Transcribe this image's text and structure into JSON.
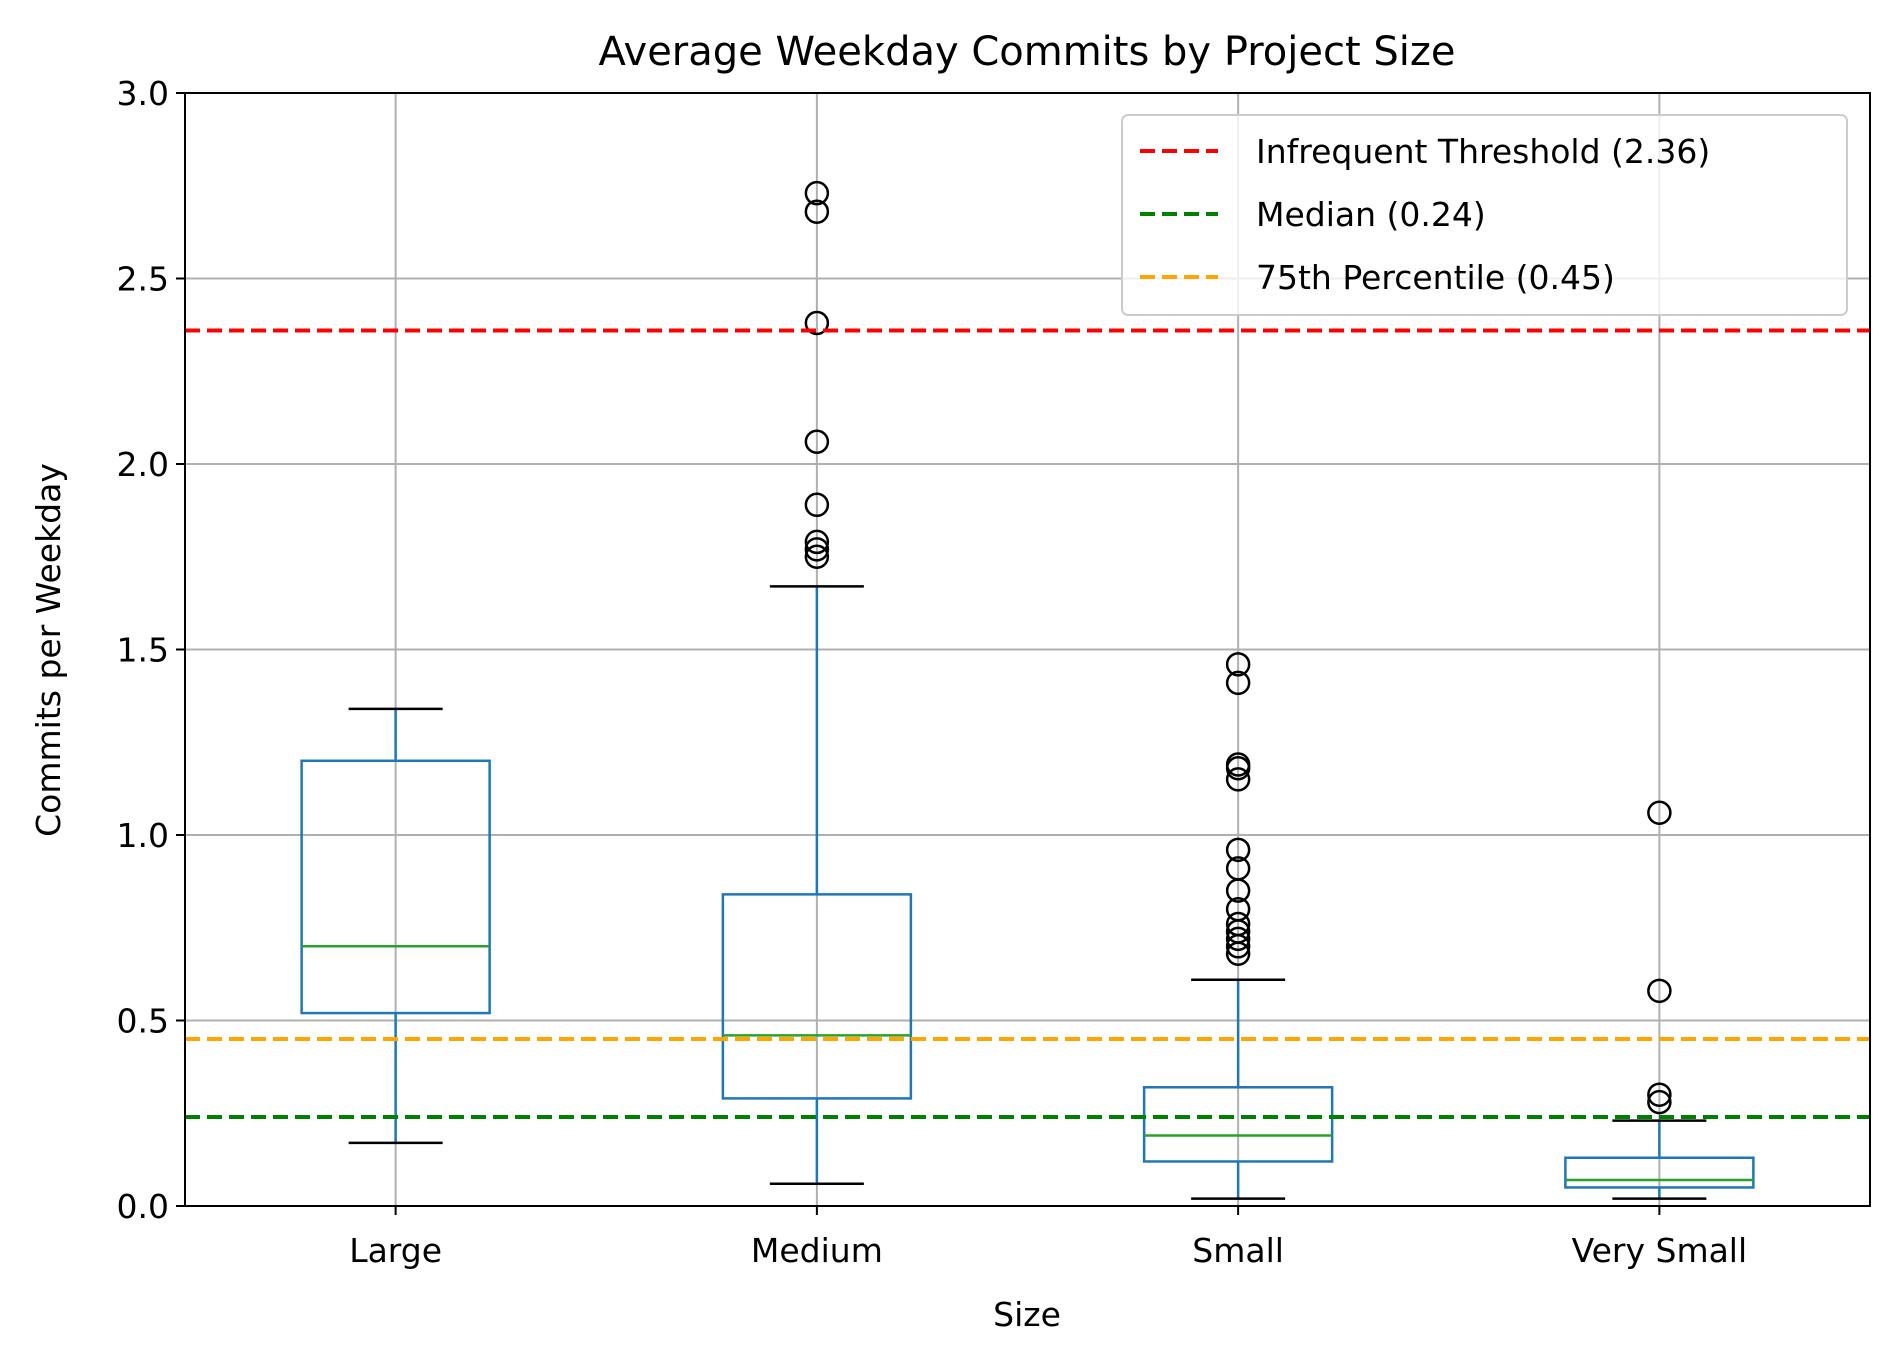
{
  "chart_data": {
    "type": "box",
    "title": "Average Weekday Commits by Project Size",
    "xlabel": "Size",
    "ylabel": "Commits per Weekday",
    "ylim": [
      0,
      3.0
    ],
    "yticks": [
      "0.0",
      "0.5",
      "1.0",
      "1.5",
      "2.0",
      "2.5",
      "3.0"
    ],
    "grid": true,
    "legend_position": "top-right",
    "colors": {
      "box": "#1f77b4",
      "median": "#2ca02c",
      "whisker_cap": "#000000",
      "flier": "#000000",
      "grid": "#b0b0b0"
    },
    "categories": [
      "Large",
      "Medium",
      "Small",
      "Very Small"
    ],
    "boxes": [
      {
        "category": "Large",
        "whisker_low": 0.17,
        "q1": 0.52,
        "median": 0.7,
        "q3": 1.2,
        "whisker_high": 1.34,
        "outliers": []
      },
      {
        "category": "Medium",
        "whisker_low": 0.06,
        "q1": 0.29,
        "median": 0.46,
        "q3": 0.84,
        "whisker_high": 1.67,
        "outliers": [
          1.75,
          1.77,
          1.79,
          1.89,
          2.06,
          2.38,
          2.68,
          2.73
        ]
      },
      {
        "category": "Small",
        "whisker_low": 0.02,
        "q1": 0.12,
        "median": 0.19,
        "q3": 0.32,
        "whisker_high": 0.61,
        "outliers": [
          0.68,
          0.7,
          0.72,
          0.74,
          0.76,
          0.8,
          0.85,
          0.91,
          0.96,
          1.15,
          1.18,
          1.19,
          1.41,
          1.46
        ]
      },
      {
        "category": "Very Small",
        "whisker_low": 0.02,
        "q1": 0.05,
        "median": 0.07,
        "q3": 0.13,
        "whisker_high": 0.23,
        "outliers": [
          0.28,
          0.3,
          0.58,
          1.06
        ]
      }
    ],
    "reference_lines": [
      {
        "label": "Infrequent Threshold (2.36)",
        "value": 2.36,
        "color": "#ff0000"
      },
      {
        "label": "Median (0.24)",
        "value": 0.24,
        "color": "#008000"
      },
      {
        "label": "75th Percentile (0.45)",
        "value": 0.45,
        "color": "#ffa500"
      }
    ]
  }
}
